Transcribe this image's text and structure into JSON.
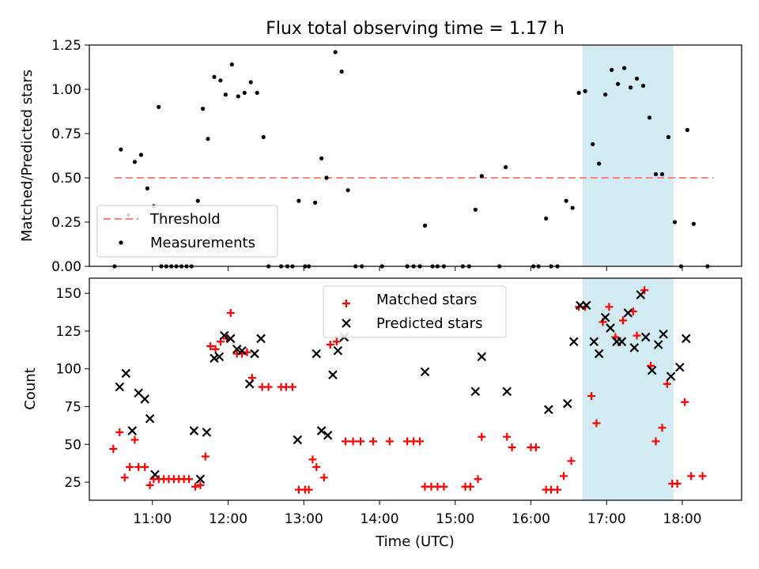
{
  "chart_data": [
    {
      "type": "scatter",
      "title": "Flux total observing time = 1.17 h",
      "xlabel": "",
      "ylabel": "Matched/Predicted stars",
      "xlim": [
        "10:10",
        "18:47"
      ],
      "ylim": [
        0,
        1.25
      ],
      "yticks": [
        0.0,
        0.25,
        0.5,
        0.75,
        1.0,
        1.25
      ],
      "ytick_labels": [
        "0.00",
        "0.25",
        "0.50",
        "0.75",
        "1.00",
        "1.25"
      ],
      "highlight_band": {
        "x": [
          "16:41",
          "17:53"
        ],
        "color": "#add8e6"
      },
      "legend": {
        "position": "lower-left",
        "entries": [
          "Threshold",
          "Measurements"
        ]
      },
      "series": [
        {
          "name": "Threshold",
          "style": "dashed-line",
          "color": "#ff7f7f",
          "x": [
            "10:30",
            "18:25"
          ],
          "y": [
            0.5,
            0.5
          ]
        },
        {
          "name": "Measurements",
          "style": "dot",
          "color": "#000000",
          "points": [
            [
              "10:30",
              0
            ],
            [
              "10:35",
              0.66
            ],
            [
              "10:41",
              0.29
            ],
            [
              "10:46",
              0.59
            ],
            [
              "10:51",
              0.63
            ],
            [
              "10:56",
              0.44
            ],
            [
              "11:01",
              0.34
            ],
            [
              "11:05",
              0.9
            ],
            [
              "11:07",
              0
            ],
            [
              "11:11",
              0
            ],
            [
              "11:15",
              0
            ],
            [
              "11:19",
              0
            ],
            [
              "11:23",
              0
            ],
            [
              "11:27",
              0
            ],
            [
              "11:31",
              0
            ],
            [
              "11:36",
              0.37
            ],
            [
              "11:40",
              0.89
            ],
            [
              "11:44",
              0.72
            ],
            [
              "11:49",
              1.07
            ],
            [
              "11:54",
              1.05
            ],
            [
              "11:58",
              0.97
            ],
            [
              "12:03",
              1.14
            ],
            [
              "12:08",
              0.96
            ],
            [
              "12:13",
              0.98
            ],
            [
              "12:18",
              1.04
            ],
            [
              "12:23",
              0.98
            ],
            [
              "12:28",
              0.73
            ],
            [
              "12:32",
              0
            ],
            [
              "12:42",
              0
            ],
            [
              "12:47",
              0
            ],
            [
              "12:51",
              0
            ],
            [
              "12:56",
              0.37
            ],
            [
              "13:01",
              0
            ],
            [
              "13:04",
              0
            ],
            [
              "13:09",
              0.36
            ],
            [
              "13:14",
              0.61
            ],
            [
              "13:18",
              0.5
            ],
            [
              "13:25",
              1.21
            ],
            [
              "13:30",
              1.1
            ],
            [
              "13:35",
              0.43
            ],
            [
              "13:41",
              0
            ],
            [
              "13:46",
              0
            ],
            [
              "14:02",
              0
            ],
            [
              "14:22",
              0
            ],
            [
              "14:27",
              0
            ],
            [
              "14:32",
              0
            ],
            [
              "14:36",
              0.23
            ],
            [
              "14:42",
              0
            ],
            [
              "14:46",
              0
            ],
            [
              "14:51",
              0
            ],
            [
              "15:06",
              0
            ],
            [
              "15:11",
              0
            ],
            [
              "15:16",
              0.32
            ],
            [
              "15:21",
              0.51
            ],
            [
              "15:35",
              0
            ],
            [
              "15:40",
              0.56
            ],
            [
              "16:02",
              0
            ],
            [
              "16:06",
              0
            ],
            [
              "16:12",
              0.27
            ],
            [
              "16:16",
              0
            ],
            [
              "16:21",
              0
            ],
            [
              "16:28",
              0.37
            ],
            [
              "16:33",
              0.33
            ],
            [
              "16:38",
              0.98
            ],
            [
              "16:43",
              0.99
            ],
            [
              "16:49",
              0.69
            ],
            [
              "16:54",
              0.58
            ],
            [
              "16:59",
              0.97
            ],
            [
              "17:04",
              1.11
            ],
            [
              "17:09",
              1.03
            ],
            [
              "17:14",
              1.12
            ],
            [
              "17:19",
              1.01
            ],
            [
              "17:24",
              1.06
            ],
            [
              "17:29",
              1.02
            ],
            [
              "17:34",
              0.84
            ],
            [
              "17:39",
              0.52
            ],
            [
              "17:44",
              0.52
            ],
            [
              "17:49",
              0.73
            ],
            [
              "17:54",
              0.25
            ],
            [
              "17:59",
              0
            ],
            [
              "18:04",
              0.77
            ],
            [
              "18:09",
              0.24
            ],
            [
              "18:20",
              0
            ]
          ]
        }
      ]
    },
    {
      "type": "scatter",
      "xlabel": "Time (UTC)",
      "ylabel": "Count",
      "xlim": [
        "10:10",
        "18:47"
      ],
      "ylim": [
        13,
        160
      ],
      "yticks": [
        25,
        50,
        75,
        100,
        125,
        150
      ],
      "ytick_labels": [
        "25",
        "50",
        "75",
        "100",
        "125",
        "150"
      ],
      "xticks": [
        "11:00",
        "12:00",
        "13:00",
        "14:00",
        "15:00",
        "16:00",
        "17:00",
        "18:00"
      ],
      "highlight_band": {
        "x": [
          "16:41",
          "17:53"
        ],
        "color": "#add8e6"
      },
      "legend": {
        "position": "upper-center",
        "entries": [
          "Matched stars",
          "Predicted stars"
        ]
      },
      "series": [
        {
          "name": "Matched stars",
          "style": "plus",
          "color": "#ff0000",
          "points": [
            [
              "10:29",
              47
            ],
            [
              "10:34",
              58
            ],
            [
              "10:38",
              28
            ],
            [
              "10:42",
              35
            ],
            [
              "10:46",
              53
            ],
            [
              "10:49",
              35
            ],
            [
              "10:54",
              35
            ],
            [
              "10:58",
              23
            ],
            [
              "11:01",
              27
            ],
            [
              "11:05",
              27
            ],
            [
              "11:09",
              27
            ],
            [
              "11:13",
              27
            ],
            [
              "11:17",
              27
            ],
            [
              "11:21",
              27
            ],
            [
              "11:25",
              27
            ],
            [
              "11:29",
              27
            ],
            [
              "11:34",
              22
            ],
            [
              "11:38",
              23
            ],
            [
              "11:42",
              42
            ],
            [
              "11:46",
              115
            ],
            [
              "11:50",
              113
            ],
            [
              "11:54",
              118
            ],
            [
              "11:59",
              120
            ],
            [
              "12:02",
              137
            ],
            [
              "12:07",
              110
            ],
            [
              "12:11",
              110
            ],
            [
              "12:15",
              111
            ],
            [
              "12:19",
              94
            ],
            [
              "12:27",
              88
            ],
            [
              "12:32",
              88
            ],
            [
              "12:42",
              88
            ],
            [
              "12:46",
              88
            ],
            [
              "12:51",
              88
            ],
            [
              "12:56",
              20
            ],
            [
              "13:01",
              20
            ],
            [
              "13:04",
              20
            ],
            [
              "13:07",
              40
            ],
            [
              "13:10",
              35
            ],
            [
              "13:16",
              28
            ],
            [
              "13:21",
              116
            ],
            [
              "13:26",
              118
            ],
            [
              "13:33",
              52
            ],
            [
              "13:39",
              52
            ],
            [
              "13:45",
              52
            ],
            [
              "13:55",
              52
            ],
            [
              "14:08",
              52
            ],
            [
              "14:22",
              52
            ],
            [
              "14:27",
              52
            ],
            [
              "14:32",
              52
            ],
            [
              "14:36",
              22
            ],
            [
              "14:41",
              22
            ],
            [
              "14:46",
              22
            ],
            [
              "14:51",
              22
            ],
            [
              "15:08",
              22
            ],
            [
              "15:12",
              22
            ],
            [
              "15:18",
              27
            ],
            [
              "15:21",
              55
            ],
            [
              "15:41",
              55
            ],
            [
              "15:45",
              48
            ],
            [
              "16:00",
              48
            ],
            [
              "16:04",
              48
            ],
            [
              "16:12",
              20
            ],
            [
              "16:16",
              20
            ],
            [
              "16:21",
              20
            ],
            [
              "16:26",
              29
            ],
            [
              "16:32",
              39
            ],
            [
              "16:38",
              141
            ],
            [
              "16:43",
              141
            ],
            [
              "16:48",
              82
            ],
            [
              "16:52",
              64
            ],
            [
              "16:57",
              131
            ],
            [
              "17:02",
              141
            ],
            [
              "17:07",
              121
            ],
            [
              "17:13",
              132
            ],
            [
              "17:21",
              138
            ],
            [
              "17:24",
              122
            ],
            [
              "17:30",
              152
            ],
            [
              "17:35",
              102
            ],
            [
              "17:39",
              52
            ],
            [
              "17:44",
              61
            ],
            [
              "17:48",
              90
            ],
            [
              "17:52",
              24
            ],
            [
              "17:56",
              24
            ],
            [
              "18:02",
              78
            ],
            [
              "18:07",
              29
            ],
            [
              "18:16",
              29
            ]
          ]
        },
        {
          "name": "Predicted stars",
          "style": "x",
          "color": "#000000",
          "points": [
            [
              "10:34",
              88
            ],
            [
              "10:39",
              97
            ],
            [
              "10:44",
              59
            ],
            [
              "10:49",
              84
            ],
            [
              "10:54",
              80
            ],
            [
              "10:58",
              67
            ],
            [
              "11:02",
              30
            ],
            [
              "11:33",
              59
            ],
            [
              "11:38",
              27
            ],
            [
              "11:43",
              58
            ],
            [
              "11:49",
              107
            ],
            [
              "11:53",
              108
            ],
            [
              "11:57",
              122
            ],
            [
              "12:02",
              120
            ],
            [
              "12:07",
              113
            ],
            [
              "12:11",
              112
            ],
            [
              "12:17",
              90
            ],
            [
              "12:21",
              110
            ],
            [
              "12:26",
              120
            ],
            [
              "12:55",
              53
            ],
            [
              "13:10",
              110
            ],
            [
              "13:14",
              59
            ],
            [
              "13:19",
              56
            ],
            [
              "13:23",
              96
            ],
            [
              "13:27",
              112
            ],
            [
              "13:32",
              121
            ],
            [
              "14:36",
              98
            ],
            [
              "15:16",
              85
            ],
            [
              "15:21",
              108
            ],
            [
              "15:41",
              85
            ],
            [
              "16:14",
              73
            ],
            [
              "16:29",
              77
            ],
            [
              "16:34",
              118
            ],
            [
              "16:39",
              142
            ],
            [
              "16:44",
              142
            ],
            [
              "16:50",
              118
            ],
            [
              "16:54",
              110
            ],
            [
              "16:59",
              134
            ],
            [
              "17:03",
              127
            ],
            [
              "17:08",
              118
            ],
            [
              "17:12",
              118
            ],
            [
              "17:17",
              137
            ],
            [
              "17:22",
              114
            ],
            [
              "17:27",
              149
            ],
            [
              "17:31",
              121
            ],
            [
              "17:36",
              99
            ],
            [
              "17:41",
              116
            ],
            [
              "17:45",
              123
            ],
            [
              "17:51",
              95
            ],
            [
              "17:58",
              101
            ],
            [
              "18:03",
              120
            ]
          ]
        }
      ]
    }
  ]
}
